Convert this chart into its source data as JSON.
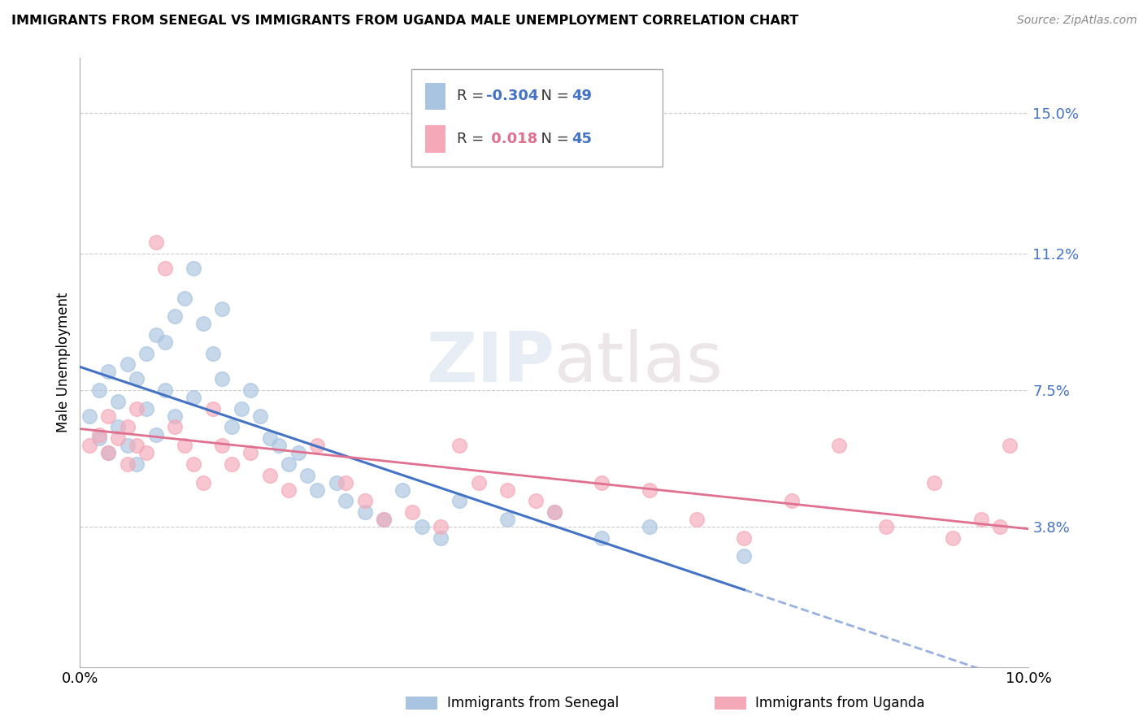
{
  "title": "IMMIGRANTS FROM SENEGAL VS IMMIGRANTS FROM UGANDA MALE UNEMPLOYMENT CORRELATION CHART",
  "source": "Source: ZipAtlas.com",
  "ylabel": "Male Unemployment",
  "xlim": [
    0.0,
    0.1
  ],
  "ylim": [
    0.0,
    0.165
  ],
  "ytick_vals": [
    0.038,
    0.075,
    0.112,
    0.15
  ],
  "ytick_labels": [
    "3.8%",
    "7.5%",
    "11.2%",
    "15.0%"
  ],
  "xtick_vals": [
    0.0,
    0.1
  ],
  "xtick_labels": [
    "0.0%",
    "10.0%"
  ],
  "senegal_R": "-0.304",
  "senegal_N": "49",
  "uganda_R": "0.018",
  "uganda_N": "45",
  "senegal_color": "#a8c4e0",
  "uganda_color": "#f4a8b8",
  "senegal_line_color": "#4472c4",
  "uganda_line_color": "#e07090",
  "senegal_x": [
    0.001,
    0.002,
    0.002,
    0.003,
    0.003,
    0.004,
    0.004,
    0.005,
    0.005,
    0.006,
    0.006,
    0.007,
    0.007,
    0.008,
    0.008,
    0.009,
    0.009,
    0.01,
    0.01,
    0.011,
    0.012,
    0.012,
    0.013,
    0.014,
    0.015,
    0.015,
    0.016,
    0.017,
    0.018,
    0.019,
    0.02,
    0.021,
    0.022,
    0.023,
    0.024,
    0.025,
    0.027,
    0.028,
    0.03,
    0.032,
    0.034,
    0.036,
    0.038,
    0.04,
    0.045,
    0.05,
    0.055,
    0.06,
    0.07
  ],
  "senegal_y": [
    0.068,
    0.075,
    0.062,
    0.08,
    0.058,
    0.072,
    0.065,
    0.082,
    0.06,
    0.078,
    0.055,
    0.085,
    0.07,
    0.09,
    0.063,
    0.075,
    0.088,
    0.095,
    0.068,
    0.1,
    0.108,
    0.073,
    0.093,
    0.085,
    0.097,
    0.078,
    0.065,
    0.07,
    0.075,
    0.068,
    0.062,
    0.06,
    0.055,
    0.058,
    0.052,
    0.048,
    0.05,
    0.045,
    0.042,
    0.04,
    0.048,
    0.038,
    0.035,
    0.045,
    0.04,
    0.042,
    0.035,
    0.038,
    0.03
  ],
  "uganda_x": [
    0.001,
    0.002,
    0.003,
    0.003,
    0.004,
    0.005,
    0.005,
    0.006,
    0.006,
    0.007,
    0.008,
    0.009,
    0.01,
    0.011,
    0.012,
    0.013,
    0.014,
    0.015,
    0.016,
    0.018,
    0.02,
    0.022,
    0.025,
    0.028,
    0.03,
    0.032,
    0.035,
    0.038,
    0.04,
    0.042,
    0.045,
    0.048,
    0.05,
    0.055,
    0.06,
    0.065,
    0.07,
    0.075,
    0.08,
    0.085,
    0.09,
    0.092,
    0.095,
    0.097,
    0.098
  ],
  "uganda_y": [
    0.06,
    0.063,
    0.058,
    0.068,
    0.062,
    0.055,
    0.065,
    0.07,
    0.06,
    0.058,
    0.115,
    0.108,
    0.065,
    0.06,
    0.055,
    0.05,
    0.07,
    0.06,
    0.055,
    0.058,
    0.052,
    0.048,
    0.06,
    0.05,
    0.045,
    0.04,
    0.042,
    0.038,
    0.06,
    0.05,
    0.048,
    0.045,
    0.042,
    0.05,
    0.048,
    0.04,
    0.035,
    0.045,
    0.06,
    0.038,
    0.05,
    0.035,
    0.04,
    0.038,
    0.06
  ]
}
